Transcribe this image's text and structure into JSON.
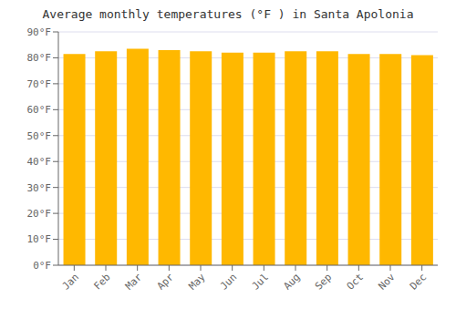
{
  "chart_data": {
    "type": "bar",
    "title": "Average monthly temperatures (°F ) in Santa Apolonia",
    "categories": [
      "Jan",
      "Feb",
      "Mar",
      "Apr",
      "May",
      "Jun",
      "Jul",
      "Aug",
      "Sep",
      "Oct",
      "Nov",
      "Dec"
    ],
    "values": [
      81.5,
      82.5,
      83.5,
      83.0,
      82.5,
      82.0,
      82.0,
      82.5,
      82.5,
      81.5,
      81.5,
      81.0
    ],
    "color": "#FFB800",
    "ylim": [
      0,
      90
    ],
    "yticks": [
      {
        "value": 0,
        "label": "0°F"
      },
      {
        "value": 10,
        "label": "10°F"
      },
      {
        "value": 20,
        "label": "20°F"
      },
      {
        "value": 30,
        "label": "30°F"
      },
      {
        "value": 40,
        "label": "40°F"
      },
      {
        "value": 50,
        "label": "50°F"
      },
      {
        "value": 60,
        "label": "60°F"
      },
      {
        "value": 70,
        "label": "70°F"
      },
      {
        "value": 80,
        "label": "80°F"
      },
      {
        "value": 90,
        "label": "90°F"
      }
    ],
    "grid": true
  }
}
